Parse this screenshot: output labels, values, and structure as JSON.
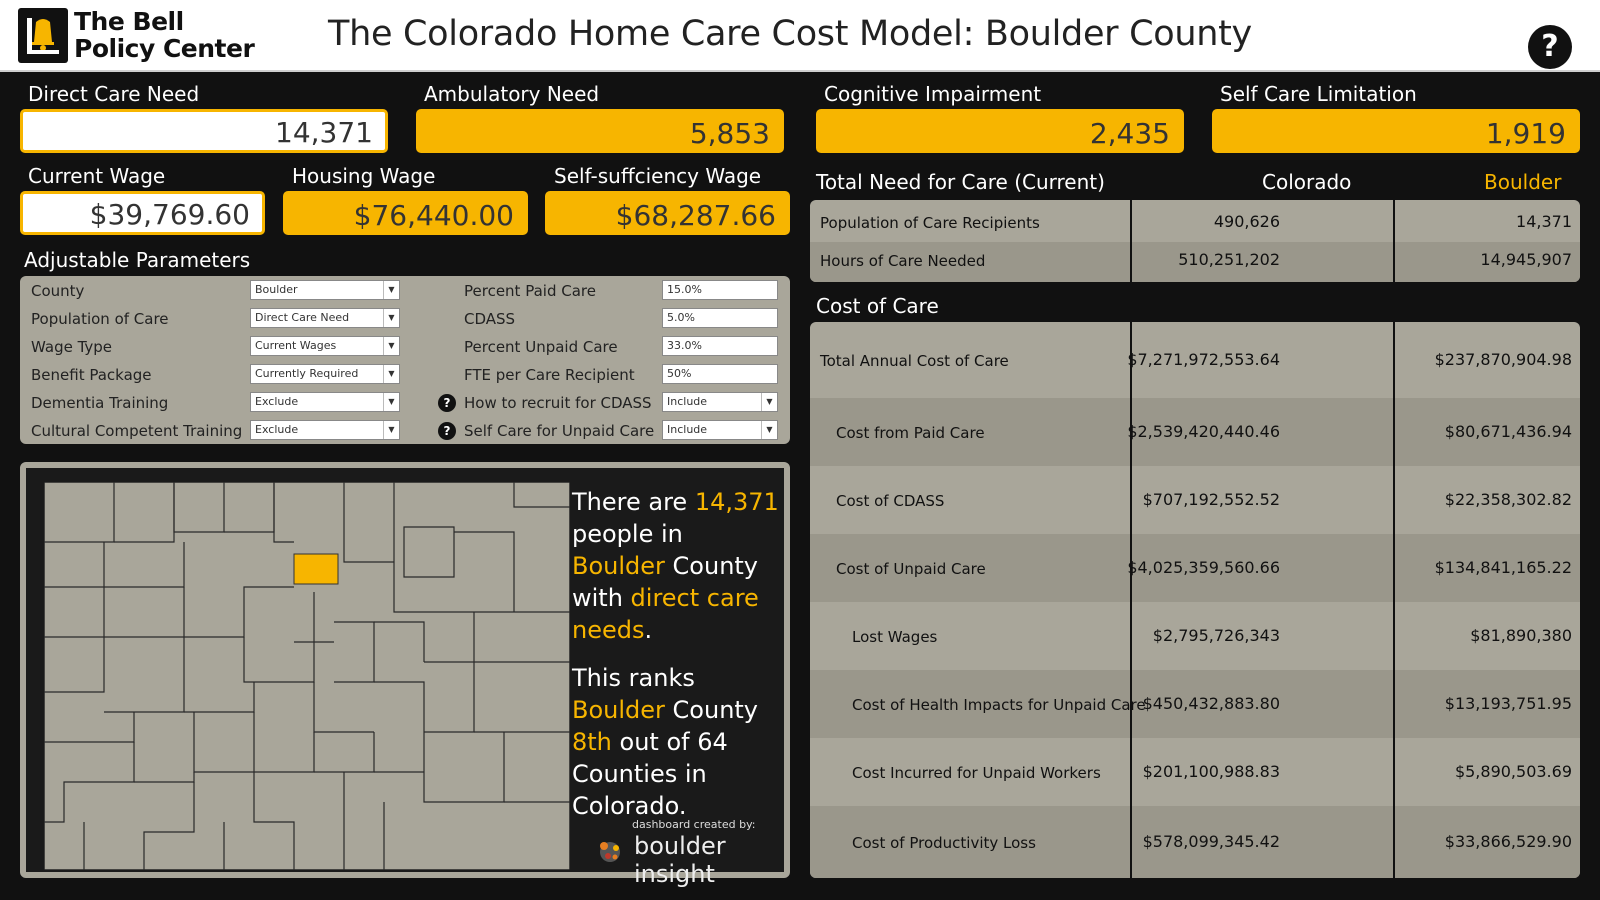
{
  "header": {
    "logo_line1": "The Bell",
    "logo_line2": "Policy Center",
    "title": "The Colorado Home Care Cost Model: Boulder County",
    "help_label": "?"
  },
  "kpis": {
    "direct_care_need": {
      "label": "Direct Care Need",
      "value": "14,371"
    },
    "ambulatory_need": {
      "label": "Ambulatory Need",
      "value": "5,853"
    },
    "cognitive_impairment": {
      "label": "Cognitive Impairment",
      "value": "2,435"
    },
    "self_care_limitation": {
      "label": "Self Care Limitation",
      "value": "1,919"
    },
    "current_wage": {
      "label": "Current Wage",
      "value": "$39,769.60"
    },
    "housing_wage": {
      "label": "Housing Wage",
      "value": "$76,440.00"
    },
    "self_sufficiency_wage": {
      "label": "Self-suffciency Wage",
      "value": "$68,287.66"
    }
  },
  "params": {
    "title": "Adjustable Parameters",
    "left": [
      {
        "label": "County",
        "value": "Boulder"
      },
      {
        "label": "Population of Care",
        "value": "Direct Care Need"
      },
      {
        "label": "Wage Type",
        "value": "Current Wages"
      },
      {
        "label": "Benefit Package",
        "value": "Currently Required"
      },
      {
        "label": "Dementia Training",
        "value": "Exclude"
      },
      {
        "label": "Cultural Competent Training",
        "value": "Exclude"
      }
    ],
    "right": [
      {
        "label": "Percent Paid Care",
        "value": "15.0%"
      },
      {
        "label": "CDASS",
        "value": "5.0%"
      },
      {
        "label": "Percent Unpaid Care",
        "value": "33.0%"
      },
      {
        "label": "FTE per Care Recipient",
        "value": "50%"
      },
      {
        "label": "How to recruit for CDASS",
        "value": "Include"
      },
      {
        "label": "Self Care for Unpaid Care",
        "value": "Include"
      }
    ],
    "dropdown_arrow": "▼",
    "help_icon": "?"
  },
  "map": {
    "p1_a": "There are ",
    "p1_num": "14,371",
    "p1_b": " people in ",
    "p1_county": "Boulder",
    "p1_c": " County with ",
    "p1_need": "direct care needs",
    "p1_d": ".",
    "p2_a": "This ranks ",
    "p2_county": "Boulder",
    "p2_b": " County ",
    "p2_rank": "8th",
    "p2_c": " out of 64 Counties in Colorado.",
    "credit_small": "dashboard created by:",
    "credit_big": "boulder insight"
  },
  "need_table": {
    "title": "Total Need for Care (Current)",
    "col_colorado": "Colorado",
    "col_boulder": "Boulder",
    "rows": [
      {
        "label": "Population of Care Recipients",
        "colorado": "490,626",
        "boulder": "14,371"
      },
      {
        "label": "Hours of Care Needed",
        "colorado": "510,251,202",
        "boulder": "14,945,907"
      }
    ]
  },
  "cost_table": {
    "title": "Cost of Care",
    "rows": [
      {
        "label": "Total Annual Cost of Care",
        "colorado": "$7,271,972,553.64",
        "boulder": "$237,870,904.98"
      },
      {
        "label": "Cost from Paid Care",
        "colorado": "$2,539,420,440.46",
        "boulder": "$80,671,436.94"
      },
      {
        "label": "Cost of CDASS",
        "colorado": "$707,192,552.52",
        "boulder": "$22,358,302.82"
      },
      {
        "label": "Cost of Unpaid Care",
        "colorado": "$4,025,359,560.66",
        "boulder": "$134,841,165.22"
      },
      {
        "label": "Lost Wages",
        "colorado": "$2,795,726,343",
        "boulder": "$81,890,380"
      },
      {
        "label": "Cost of Health Impacts for Unpaid Care",
        "colorado": "$450,432,883.80",
        "boulder": "$13,193,751.95"
      },
      {
        "label": "Cost Incurred for Unpaid Workers",
        "colorado": "$201,100,988.83",
        "boulder": "$5,890,503.69"
      },
      {
        "label": "Cost of Productivity Loss",
        "colorado": "$578,099,345.42",
        "boulder": "$33,866,529.90"
      }
    ]
  },
  "colors": {
    "accent": "#f7b500",
    "panel": "#a9a69a",
    "background": "#111111"
  }
}
